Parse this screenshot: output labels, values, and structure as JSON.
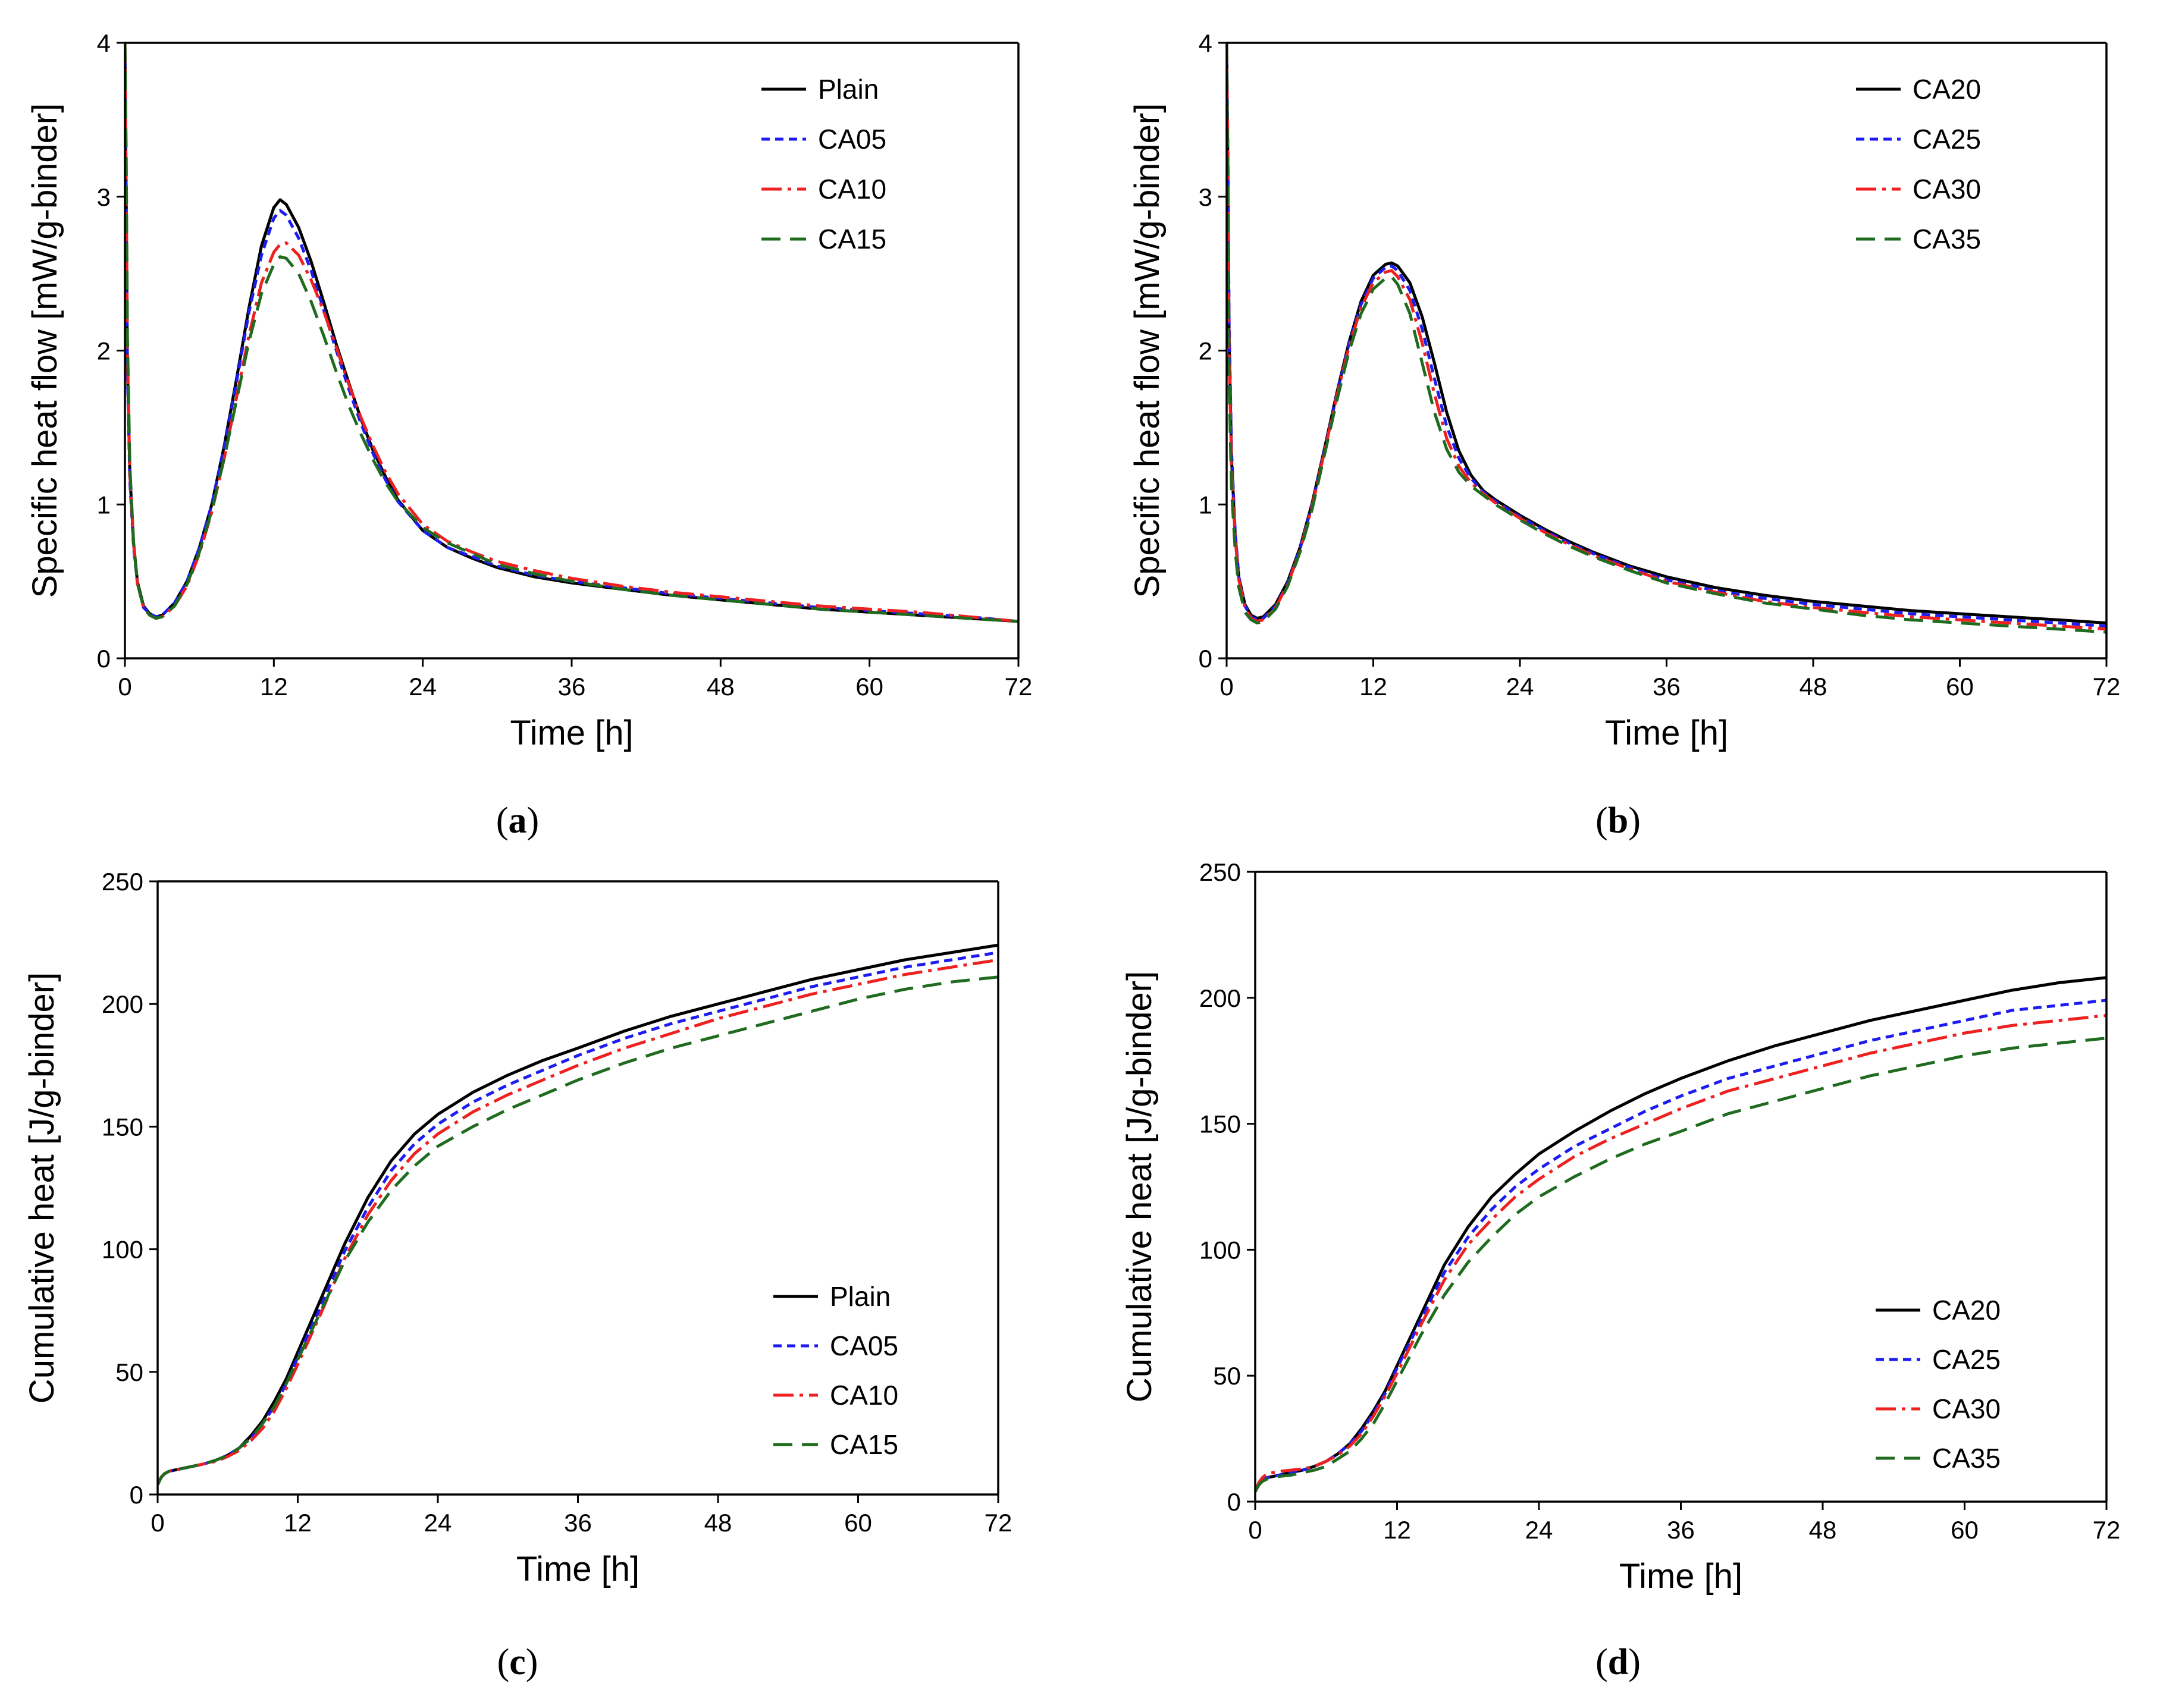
{
  "figure": {
    "colors": {
      "black": "#000000",
      "blue": "#1c1cf0",
      "red": "#ee2020",
      "green": "#1f6b1f"
    },
    "dash_styles": [
      "solid",
      "short-dash",
      "dash-dot",
      "long-dash"
    ]
  },
  "chart_data": [
    {
      "id": "a",
      "caption_letter": "a",
      "type": "line",
      "xlabel": "Time [h]",
      "ylabel": "Specific heat flow [mW/g-binder]",
      "xlim": [
        0,
        72
      ],
      "ylim": [
        0,
        4
      ],
      "xticks": [
        "0",
        "12",
        "24",
        "36",
        "48",
        "60",
        "72"
      ],
      "yticks": [
        "0",
        "1",
        "2",
        "3",
        "4"
      ],
      "legend_position": "top-right",
      "x": [
        0,
        0.1,
        0.2,
        0.4,
        0.7,
        1,
        1.5,
        2,
        2.5,
        3,
        4,
        5,
        6,
        7,
        8,
        9,
        10,
        11,
        12,
        12.5,
        13,
        14,
        15,
        16,
        17,
        18,
        19,
        20,
        21,
        22,
        24,
        26,
        28,
        30,
        33,
        36,
        40,
        44,
        48,
        52,
        56,
        60,
        64,
        68,
        72
      ],
      "series": [
        {
          "name": "Plain",
          "values": [
            4.0,
            3.0,
            1.9,
            1.2,
            0.75,
            0.5,
            0.34,
            0.29,
            0.27,
            0.28,
            0.36,
            0.5,
            0.72,
            1.0,
            1.38,
            1.82,
            2.28,
            2.68,
            2.93,
            2.98,
            2.95,
            2.8,
            2.58,
            2.32,
            2.05,
            1.8,
            1.56,
            1.35,
            1.18,
            1.03,
            0.83,
            0.72,
            0.65,
            0.59,
            0.53,
            0.49,
            0.45,
            0.41,
            0.38,
            0.35,
            0.32,
            0.3,
            0.28,
            0.26,
            0.24
          ]
        },
        {
          "name": "CA05",
          "values": [
            3.9,
            2.9,
            1.85,
            1.15,
            0.72,
            0.49,
            0.33,
            0.29,
            0.27,
            0.28,
            0.36,
            0.5,
            0.72,
            1.0,
            1.37,
            1.8,
            2.25,
            2.62,
            2.86,
            2.91,
            2.88,
            2.73,
            2.52,
            2.27,
            2.01,
            1.76,
            1.53,
            1.33,
            1.16,
            1.02,
            0.83,
            0.72,
            0.66,
            0.6,
            0.54,
            0.5,
            0.46,
            0.42,
            0.39,
            0.36,
            0.33,
            0.31,
            0.29,
            0.27,
            0.24
          ]
        },
        {
          "name": "CA10",
          "values": [
            4.0,
            3.1,
            2.0,
            1.2,
            0.74,
            0.49,
            0.33,
            0.28,
            0.26,
            0.27,
            0.34,
            0.47,
            0.68,
            0.95,
            1.3,
            1.7,
            2.1,
            2.44,
            2.64,
            2.69,
            2.7,
            2.62,
            2.46,
            2.26,
            2.03,
            1.79,
            1.57,
            1.38,
            1.21,
            1.07,
            0.87,
            0.76,
            0.69,
            0.63,
            0.57,
            0.52,
            0.47,
            0.43,
            0.4,
            0.37,
            0.34,
            0.32,
            0.3,
            0.27,
            0.24
          ]
        },
        {
          "name": "CA15",
          "values": [
            4.0,
            3.3,
            2.1,
            1.25,
            0.75,
            0.49,
            0.33,
            0.28,
            0.26,
            0.27,
            0.34,
            0.48,
            0.69,
            0.96,
            1.3,
            1.68,
            2.06,
            2.37,
            2.56,
            2.61,
            2.6,
            2.5,
            2.32,
            2.1,
            1.87,
            1.65,
            1.46,
            1.29,
            1.14,
            1.02,
            0.85,
            0.75,
            0.68,
            0.61,
            0.55,
            0.5,
            0.45,
            0.41,
            0.38,
            0.35,
            0.32,
            0.3,
            0.28,
            0.26,
            0.24
          ]
        }
      ]
    },
    {
      "id": "b",
      "caption_letter": "b",
      "type": "line",
      "xlabel": "Time [h]",
      "ylabel": "Specific heat flow [mW/g-binder]",
      "xlim": [
        0,
        72
      ],
      "ylim": [
        0,
        4
      ],
      "xticks": [
        "0",
        "12",
        "24",
        "36",
        "48",
        "60",
        "72"
      ],
      "yticks": [
        "0",
        "1",
        "2",
        "3",
        "4"
      ],
      "legend_position": "top-right",
      "x": [
        0,
        0.1,
        0.2,
        0.4,
        0.7,
        1,
        1.5,
        2,
        2.5,
        3,
        4,
        5,
        6,
        7,
        8,
        9,
        10,
        11,
        12,
        13,
        13.5,
        14,
        15,
        16,
        17,
        18,
        19,
        20,
        21,
        22,
        24,
        26,
        28,
        30,
        33,
        36,
        40,
        44,
        48,
        52,
        56,
        60,
        64,
        68,
        72
      ],
      "series": [
        {
          "name": "CA20",
          "values": [
            4.0,
            3.2,
            2.1,
            1.3,
            0.8,
            0.53,
            0.35,
            0.28,
            0.26,
            0.27,
            0.35,
            0.5,
            0.72,
            1.01,
            1.36,
            1.72,
            2.05,
            2.32,
            2.49,
            2.56,
            2.57,
            2.55,
            2.44,
            2.22,
            1.92,
            1.6,
            1.35,
            1.19,
            1.09,
            1.03,
            0.93,
            0.84,
            0.76,
            0.69,
            0.6,
            0.53,
            0.46,
            0.41,
            0.37,
            0.34,
            0.31,
            0.29,
            0.27,
            0.25,
            0.23
          ]
        },
        {
          "name": "CA25",
          "values": [
            4.0,
            3.3,
            2.2,
            1.35,
            0.82,
            0.53,
            0.34,
            0.27,
            0.25,
            0.26,
            0.34,
            0.49,
            0.71,
            1.0,
            1.35,
            1.71,
            2.04,
            2.3,
            2.47,
            2.54,
            2.55,
            2.52,
            2.39,
            2.14,
            1.82,
            1.51,
            1.3,
            1.17,
            1.08,
            1.02,
            0.92,
            0.83,
            0.75,
            0.68,
            0.59,
            0.51,
            0.44,
            0.39,
            0.35,
            0.32,
            0.29,
            0.27,
            0.25,
            0.23,
            0.21
          ]
        },
        {
          "name": "CA30",
          "values": [
            4.0,
            3.2,
            2.0,
            1.25,
            0.78,
            0.51,
            0.33,
            0.26,
            0.24,
            0.25,
            0.33,
            0.48,
            0.7,
            0.99,
            1.34,
            1.7,
            2.02,
            2.28,
            2.44,
            2.51,
            2.52,
            2.48,
            2.33,
            2.05,
            1.72,
            1.43,
            1.25,
            1.14,
            1.07,
            1.01,
            0.91,
            0.82,
            0.74,
            0.67,
            0.58,
            0.5,
            0.43,
            0.37,
            0.33,
            0.3,
            0.27,
            0.25,
            0.23,
            0.21,
            0.19
          ]
        },
        {
          "name": "CA35",
          "values": [
            4.0,
            3.0,
            1.8,
            1.1,
            0.7,
            0.46,
            0.3,
            0.25,
            0.23,
            0.24,
            0.32,
            0.47,
            0.69,
            0.97,
            1.32,
            1.67,
            1.99,
            2.24,
            2.4,
            2.47,
            2.48,
            2.43,
            2.24,
            1.92,
            1.6,
            1.36,
            1.21,
            1.12,
            1.06,
            1.0,
            0.9,
            0.81,
            0.73,
            0.66,
            0.57,
            0.49,
            0.42,
            0.36,
            0.32,
            0.28,
            0.25,
            0.23,
            0.21,
            0.19,
            0.17
          ]
        }
      ]
    },
    {
      "id": "c",
      "caption_letter": "c",
      "type": "line",
      "xlabel": "Time [h]",
      "ylabel": "Cumulative heat [J/g-binder]",
      "xlim": [
        0,
        72
      ],
      "ylim": [
        0,
        250
      ],
      "xticks": [
        "0",
        "12",
        "24",
        "36",
        "48",
        "60",
        "72"
      ],
      "yticks": [
        "0",
        "50",
        "100",
        "150",
        "200",
        "250"
      ],
      "legend_position": "lower-right",
      "x": [
        0,
        0.3,
        0.6,
        1,
        2,
        3,
        4,
        5,
        6,
        7,
        8,
        9,
        10,
        11,
        12,
        14,
        16,
        18,
        20,
        22,
        24,
        27,
        30,
        33,
        36,
        40,
        44,
        48,
        52,
        56,
        60,
        64,
        68,
        72
      ],
      "series": [
        {
          "name": "Plain",
          "values": [
            4,
            7,
            8.5,
            9.5,
            10.5,
            11.5,
            12.5,
            14,
            16,
            19,
            24,
            30,
            38,
            47,
            58,
            80,
            102,
            121,
            136,
            147,
            155,
            164,
            171,
            177,
            182,
            189,
            195,
            200,
            205,
            210,
            214,
            218,
            221,
            224
          ]
        },
        {
          "name": "CA05",
          "values": [
            4,
            7,
            8.5,
            9.5,
            10.5,
            11.5,
            12.5,
            14,
            16,
            19,
            23,
            29,
            36,
            45,
            56,
            77,
            99,
            117,
            132,
            143,
            151,
            160,
            167,
            173,
            179,
            186,
            192,
            197,
            202,
            207,
            211,
            215,
            218,
            221
          ]
        },
        {
          "name": "CA10",
          "values": [
            4,
            7,
            8.5,
            9.5,
            10.5,
            11.5,
            12.5,
            13.5,
            15.5,
            18,
            22,
            27,
            34,
            43,
            53,
            74,
            96,
            114,
            128,
            139,
            147,
            156,
            163,
            169,
            175,
            182,
            188,
            194,
            199,
            204,
            208,
            212,
            215,
            218
          ]
        },
        {
          "name": "CA15",
          "values": [
            4,
            7,
            8.5,
            9.5,
            10.5,
            11.5,
            12.5,
            14,
            16,
            19,
            23,
            29,
            36,
            45,
            55,
            75,
            95,
            111,
            124,
            134,
            142,
            150,
            157,
            163,
            169,
            176,
            182,
            187,
            192,
            197,
            202,
            206,
            209,
            211
          ]
        }
      ]
    },
    {
      "id": "d",
      "caption_letter": "d",
      "type": "line",
      "xlabel": "Time [h]",
      "ylabel": "Cumulative heat [J/g-binder]",
      "xlim": [
        0,
        72
      ],
      "ylim": [
        0,
        250
      ],
      "xticks": [
        "0",
        "12",
        "24",
        "36",
        "48",
        "60",
        "72"
      ],
      "yticks": [
        "0",
        "50",
        "100",
        "150",
        "200",
        "250"
      ],
      "legend_position": "lower-right",
      "x": [
        0,
        0.3,
        0.6,
        1,
        2,
        3,
        4,
        5,
        6,
        7,
        8,
        9,
        10,
        11,
        12,
        14,
        16,
        18,
        20,
        22,
        24,
        27,
        30,
        33,
        36,
        40,
        44,
        48,
        52,
        56,
        60,
        64,
        68,
        72
      ],
      "series": [
        {
          "name": "CA20",
          "values": [
            4,
            7,
            8.5,
            9.5,
            10.5,
            11.5,
            12.5,
            14,
            16,
            19,
            23,
            29,
            36,
            44,
            54,
            74,
            94,
            109,
            121,
            130,
            138,
            147,
            155,
            162,
            168,
            175,
            181,
            186,
            191,
            195,
            199,
            203,
            206,
            208
          ]
        },
        {
          "name": "CA25",
          "values": [
            4,
            7,
            8.5,
            9.5,
            10.5,
            11.5,
            12.5,
            14,
            16,
            19,
            23,
            28,
            35,
            43,
            53,
            72,
            91,
            105,
            116,
            125,
            132,
            141,
            148,
            155,
            161,
            168,
            173,
            178,
            183,
            187,
            191,
            195,
            197,
            199
          ]
        },
        {
          "name": "CA30",
          "values": [
            4,
            7.5,
            9.5,
            11,
            12,
            12.5,
            13,
            14,
            16,
            18.5,
            22,
            27,
            34,
            42,
            51,
            70,
            88,
            102,
            112,
            121,
            128,
            137,
            144,
            150,
            156,
            163,
            168,
            173,
            178,
            182,
            186,
            189,
            191,
            193
          ]
        },
        {
          "name": "CA35",
          "values": [
            4,
            6.5,
            8,
            9,
            10,
            10.5,
            11.5,
            12.5,
            14,
            17,
            20,
            25,
            31,
            39,
            48,
            66,
            82,
            95,
            105,
            114,
            121,
            129,
            136,
            142,
            147,
            154,
            159,
            164,
            169,
            173,
            177,
            180,
            182,
            184
          ]
        }
      ]
    }
  ]
}
